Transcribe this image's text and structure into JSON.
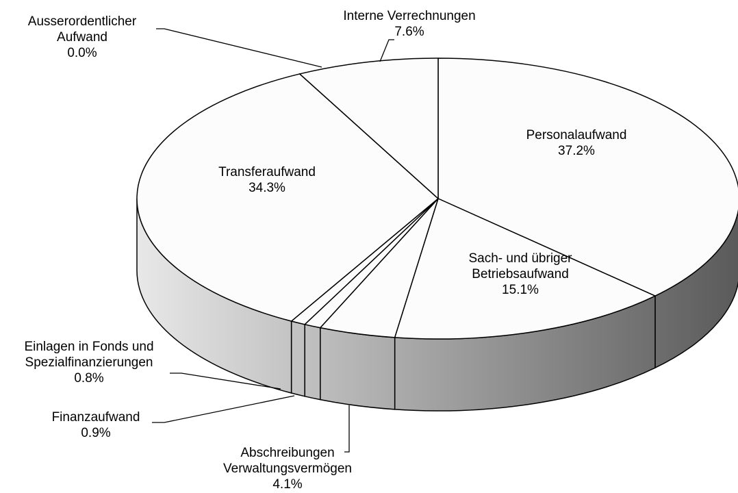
{
  "chart_data": {
    "type": "pie",
    "categories": [
      "Personalaufwand",
      "Sach- und übriger\nBetriebsaufwand",
      "Abschreibungen\nVerwaltungsvermögen",
      "Finanzaufwand",
      "Einlagen in Fonds und\nSpezialfinanzierungen",
      "Transferaufwand",
      "Ausserordentlicher\nAufwand",
      "Interne Verrechnungen"
    ],
    "values": [
      37.2,
      15.1,
      4.1,
      0.9,
      0.8,
      34.3,
      0.0,
      7.6
    ],
    "value_labels": [
      "37.2%",
      "15.1%",
      "4.1%",
      "0.9%",
      "0.8%",
      "34.3%",
      "0.0%",
      "7.6%"
    ],
    "color": "#fcfcfc"
  }
}
